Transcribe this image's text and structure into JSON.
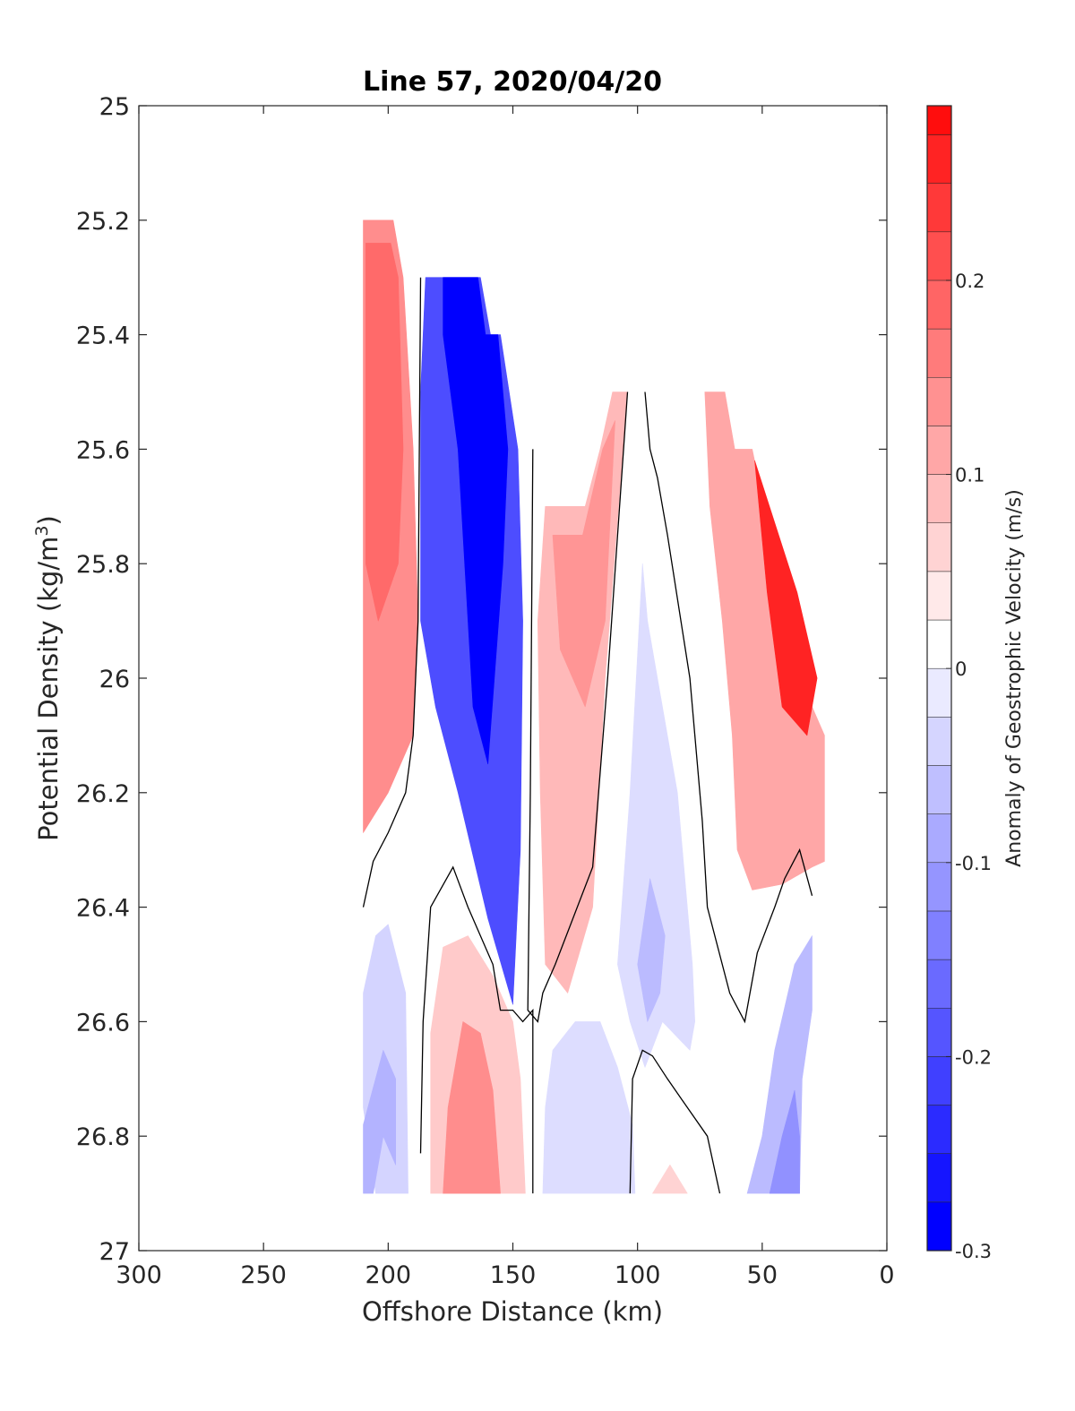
{
  "chart_data": {
    "type": "heatmap",
    "title": "Line 57, 2020/04/20",
    "xlabel": "Offshore Distance (km)",
    "ylabel": "Potential Density (kg/m",
    "ylabel_sup": "3",
    "ylabel_close": ")",
    "xlim": [
      300,
      0
    ],
    "ylim": [
      25,
      27
    ],
    "x_reversed": true,
    "y_reversed": true,
    "xticks": [
      300,
      250,
      200,
      150,
      100,
      50,
      0
    ],
    "xtick_labels": [
      "300",
      "250",
      "200",
      "150",
      "100",
      "50",
      "0"
    ],
    "yticks": [
      25,
      25.2,
      25.4,
      25.6,
      25.8,
      26,
      26.2,
      26.4,
      26.6,
      26.8,
      27
    ],
    "ytick_labels": [
      "25",
      "25.2",
      "25.4",
      "25.6",
      "25.8",
      "26",
      "26.2",
      "26.4",
      "26.6",
      "26.8",
      "27"
    ],
    "colorbar": {
      "label": "Anomaly of Geostrophic Velocity (m/s)",
      "range": [
        -0.3,
        0.29
      ],
      "levels": [
        -0.3,
        -0.275,
        -0.25,
        -0.225,
        -0.2,
        -0.175,
        -0.15,
        -0.125,
        -0.1,
        -0.075,
        -0.05,
        -0.025,
        0,
        0.025,
        0.05,
        0.075,
        0.1,
        0.125,
        0.15,
        0.175,
        0.2,
        0.225,
        0.25,
        0.275,
        0.29
      ],
      "ticks": [
        -0.3,
        -0.2,
        -0.1,
        0,
        0.1,
        0.2
      ],
      "tick_labels": [
        "-0.3",
        "-0.2",
        "-0.1",
        "0",
        "0.1",
        "0.2"
      ],
      "colormap": "blue-white-red",
      "color_negative": "#0000ff",
      "color_zero": "#ffffff",
      "color_positive": "#ff0000"
    },
    "regions": [
      {
        "name": "offshore-positive-column",
        "value": 0.13,
        "polygon": [
          [
            210,
            25.2
          ],
          [
            198,
            25.2
          ],
          [
            194,
            25.3
          ],
          [
            190,
            25.6
          ],
          [
            188,
            25.9
          ],
          [
            190,
            26.1
          ],
          [
            200,
            26.2
          ],
          [
            210,
            26.27
          ]
        ]
      },
      {
        "name": "offshore-positive-core",
        "value": 0.17,
        "polygon": [
          [
            209,
            25.24
          ],
          [
            199,
            25.24
          ],
          [
            196,
            25.3
          ],
          [
            194,
            25.6
          ],
          [
            196,
            25.8
          ],
          [
            204,
            25.9
          ],
          [
            209,
            25.8
          ]
        ]
      },
      {
        "name": "main-negative-jet",
        "value": -0.21,
        "polygon": [
          [
            185,
            25.3
          ],
          [
            163,
            25.3
          ],
          [
            159,
            25.4
          ],
          [
            155,
            25.4
          ],
          [
            148,
            25.6
          ],
          [
            146,
            25.9
          ],
          [
            147,
            26.3
          ],
          [
            150,
            26.57
          ],
          [
            160,
            26.42
          ],
          [
            172,
            26.2
          ],
          [
            181,
            26.05
          ],
          [
            187,
            25.9
          ],
          [
            187,
            25.5
          ]
        ]
      },
      {
        "name": "main-negative-core",
        "value": -0.3,
        "polygon": [
          [
            178,
            25.3
          ],
          [
            164,
            25.3
          ],
          [
            161,
            25.4
          ],
          [
            156,
            25.4
          ],
          [
            152,
            25.6
          ],
          [
            154,
            25.8
          ],
          [
            160,
            26.15
          ],
          [
            166,
            26.05
          ],
          [
            172,
            25.6
          ],
          [
            178,
            25.4
          ]
        ]
      },
      {
        "name": "upper-positive-middle",
        "value": 0.08,
        "polygon": [
          [
            137,
            25.7
          ],
          [
            121,
            25.7
          ],
          [
            115,
            25.6
          ],
          [
            110,
            25.5
          ],
          [
            104,
            25.5
          ],
          [
            113,
            26.0
          ],
          [
            118,
            26.4
          ],
          [
            128,
            26.55
          ],
          [
            137,
            26.5
          ],
          [
            139,
            26.2
          ],
          [
            140,
            25.9
          ]
        ]
      },
      {
        "name": "upper-positive-middle-core",
        "value": 0.12,
        "polygon": [
          [
            134,
            25.75
          ],
          [
            122,
            25.75
          ],
          [
            114,
            25.6
          ],
          [
            109,
            25.55
          ],
          [
            113,
            25.9
          ],
          [
            121,
            26.05
          ],
          [
            131,
            25.95
          ]
        ]
      },
      {
        "name": "nearshore-negative-column",
        "value": -0.04,
        "polygon": [
          [
            98,
            25.8
          ],
          [
            96,
            25.9
          ],
          [
            92,
            26.0
          ],
          [
            84,
            26.2
          ],
          [
            80,
            26.4
          ],
          [
            78,
            26.5
          ],
          [
            77,
            26.6
          ],
          [
            79,
            26.65
          ],
          [
            90,
            26.6
          ],
          [
            97,
            26.68
          ],
          [
            103,
            26.6
          ],
          [
            108,
            26.5
          ],
          [
            103,
            26.2
          ]
        ]
      },
      {
        "name": "nearshore-negative-core",
        "value": -0.08,
        "polygon": [
          [
            95,
            26.35
          ],
          [
            100,
            26.5
          ],
          [
            96,
            26.6
          ],
          [
            91,
            26.55
          ],
          [
            89,
            26.45
          ]
        ]
      },
      {
        "name": "nearshore-positive-wedge",
        "value": 0.1,
        "polygon": [
          [
            73,
            25.5
          ],
          [
            65,
            25.5
          ],
          [
            61,
            25.6
          ],
          [
            54,
            25.6
          ],
          [
            35,
            26.0
          ],
          [
            25,
            26.1
          ],
          [
            25,
            26.32
          ],
          [
            30,
            26.33
          ],
          [
            42,
            26.36
          ],
          [
            54,
            26.37
          ],
          [
            60,
            26.3
          ],
          [
            62,
            26.1
          ],
          [
            66,
            25.9
          ],
          [
            71,
            25.7
          ]
        ]
      },
      {
        "name": "nearshore-positive-core",
        "value": 0.25,
        "polygon": [
          [
            53,
            25.62
          ],
          [
            36,
            25.85
          ],
          [
            28,
            26.0
          ],
          [
            32,
            26.1
          ],
          [
            42,
            26.05
          ],
          [
            48,
            25.85
          ]
        ]
      },
      {
        "name": "deep-negative-offshore",
        "value": -0.05,
        "polygon": [
          [
            210,
            26.55
          ],
          [
            205,
            26.45
          ],
          [
            200,
            26.43
          ],
          [
            193,
            26.55
          ],
          [
            192,
            26.9
          ],
          [
            205,
            26.9
          ],
          [
            210,
            26.75
          ]
        ]
      },
      {
        "name": "deep-negative-offshore-core",
        "value": -0.09,
        "polygon": [
          [
            210,
            26.78
          ],
          [
            202,
            26.65
          ],
          [
            197,
            26.7
          ],
          [
            197,
            26.85
          ],
          [
            202,
            26.8
          ],
          [
            206,
            26.9
          ],
          [
            210,
            26.9
          ]
        ]
      },
      {
        "name": "deep-positive-middle",
        "value": 0.06,
        "polygon": [
          [
            183,
            26.62
          ],
          [
            178,
            26.47
          ],
          [
            168,
            26.45
          ],
          [
            158,
            26.52
          ],
          [
            150,
            26.6
          ],
          [
            147,
            26.7
          ],
          [
            145,
            26.9
          ],
          [
            183,
            26.9
          ]
        ]
      },
      {
        "name": "deep-positive-middle-core",
        "value": 0.13,
        "polygon": [
          [
            176,
            26.75
          ],
          [
            170,
            26.6
          ],
          [
            163,
            26.62
          ],
          [
            158,
            26.72
          ],
          [
            155,
            26.9
          ],
          [
            178,
            26.9
          ]
        ]
      },
      {
        "name": "deep-negative-middle",
        "value": -0.04,
        "polygon": [
          [
            137,
            26.75
          ],
          [
            134,
            26.65
          ],
          [
            125,
            26.6
          ],
          [
            115,
            26.6
          ],
          [
            108,
            26.68
          ],
          [
            102,
            26.78
          ],
          [
            101,
            26.9
          ],
          [
            138,
            26.9
          ]
        ]
      },
      {
        "name": "deep-positive-small",
        "value": 0.05,
        "polygon": [
          [
            94,
            26.9
          ],
          [
            87,
            26.85
          ],
          [
            80,
            26.9
          ]
        ]
      },
      {
        "name": "deep-negative-nearshore",
        "value": -0.08,
        "polygon": [
          [
            50,
            26.8
          ],
          [
            45,
            26.65
          ],
          [
            37,
            26.5
          ],
          [
            30,
            26.45
          ],
          [
            30,
            26.58
          ],
          [
            34,
            26.7
          ],
          [
            35,
            26.9
          ],
          [
            56,
            26.9
          ]
        ]
      },
      {
        "name": "deep-negative-nearshore-core",
        "value": -0.13,
        "polygon": [
          [
            47,
            26.9
          ],
          [
            42,
            26.8
          ],
          [
            37,
            26.72
          ],
          [
            35,
            26.8
          ],
          [
            35,
            26.9
          ]
        ]
      }
    ],
    "zero_contours": [
      [
        [
          187,
          25.3
        ],
        [
          188,
          25.9
        ],
        [
          190,
          26.1
        ],
        [
          193,
          26.2
        ],
        [
          200,
          26.27
        ],
        [
          206,
          26.32
        ],
        [
          210,
          26.4
        ]
      ],
      [
        [
          142,
          25.6
        ],
        [
          143,
          26.2
        ],
        [
          144,
          26.58
        ],
        [
          140,
          26.6
        ],
        [
          138,
          26.55
        ],
        [
          133,
          26.5
        ],
        [
          118,
          26.33
        ],
        [
          112,
          26.0
        ],
        [
          104,
          25.5
        ]
      ],
      [
        [
          97,
          25.5
        ],
        [
          95,
          25.6
        ],
        [
          92,
          25.65
        ],
        [
          88,
          25.75
        ],
        [
          79,
          26.0
        ],
        [
          74,
          26.25
        ],
        [
          72,
          26.4
        ],
        [
          63,
          26.55
        ],
        [
          57,
          26.6
        ],
        [
          52,
          26.48
        ],
        [
          45,
          26.4
        ],
        [
          41,
          26.35
        ],
        [
          35,
          26.3
        ],
        [
          30,
          26.38
        ]
      ],
      [
        [
          187,
          26.83
        ],
        [
          186,
          26.6
        ],
        [
          183,
          26.4
        ],
        [
          174,
          26.33
        ],
        [
          168,
          26.4
        ],
        [
          158,
          26.5
        ],
        [
          155,
          26.58
        ],
        [
          150,
          26.58
        ],
        [
          146,
          26.6
        ],
        [
          142,
          26.58
        ],
        [
          142,
          26.9
        ]
      ],
      [
        [
          103,
          26.9
        ],
        [
          102,
          26.7
        ],
        [
          98,
          26.65
        ],
        [
          94,
          26.66
        ],
        [
          88,
          26.7
        ],
        [
          80,
          26.75
        ],
        [
          72,
          26.8
        ],
        [
          68,
          26.88
        ],
        [
          67,
          26.9
        ]
      ]
    ]
  }
}
